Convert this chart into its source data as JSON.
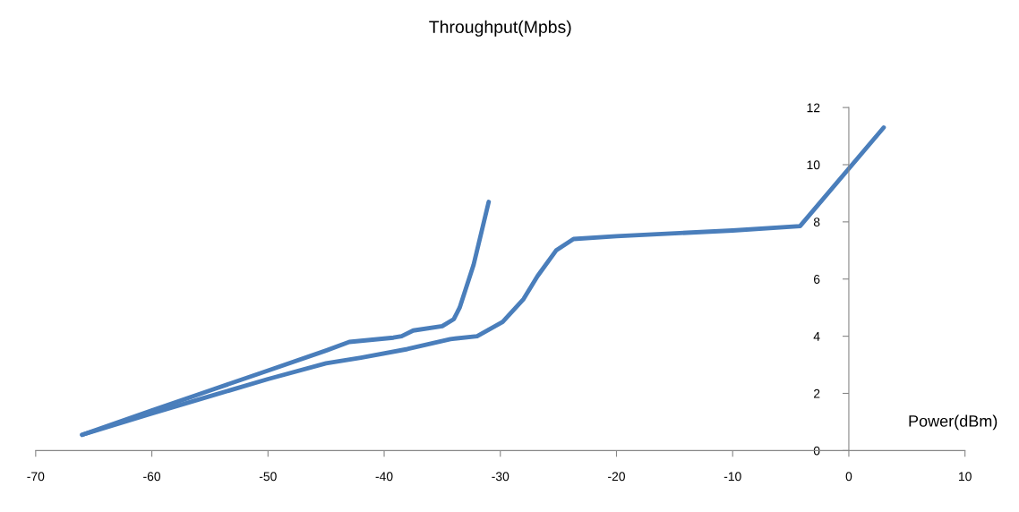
{
  "chart_data": {
    "type": "line",
    "title": "Throughput(Mpbs)",
    "xlabel": "Power(dBm)",
    "series": [
      {
        "color": "#4a7ebb",
        "x": [
          -66,
          -60,
          -55,
          -50,
          -45,
          -42,
          -38,
          -34.3,
          -32,
          -29.8,
          -28,
          -26.8,
          -25.2,
          -23.7,
          -20,
          -10,
          -4.2,
          3
        ],
        "values": [
          0.55,
          1.3,
          1.9,
          2.5,
          3.05,
          3.25,
          3.55,
          3.9,
          4.0,
          4.5,
          5.3,
          6.1,
          7.0,
          7.4,
          7.5,
          7.7,
          7.85,
          11.3
        ]
      },
      {
        "color": "#4a7ebb",
        "x": [
          -66,
          -60,
          -55,
          -50,
          -45,
          -43,
          -39.2,
          -38.5,
          -37.5,
          -35,
          -34,
          -33.5,
          -32.3,
          -31
        ],
        "values": [
          0.55,
          1.4,
          2.1,
          2.8,
          3.5,
          3.8,
          3.95,
          4.0,
          4.2,
          4.35,
          4.6,
          5.0,
          6.5,
          8.7
        ]
      }
    ],
    "xlim": [
      -70,
      10
    ],
    "xticks": [
      -70,
      -60,
      -50,
      -40,
      -30,
      -20,
      -10,
      0,
      10
    ],
    "ylim": [
      0,
      12
    ],
    "yticks": [
      0,
      2,
      4,
      6,
      8,
      10,
      12
    ],
    "grid": false,
    "legend": false,
    "marker": "none",
    "line_style": "solid"
  }
}
